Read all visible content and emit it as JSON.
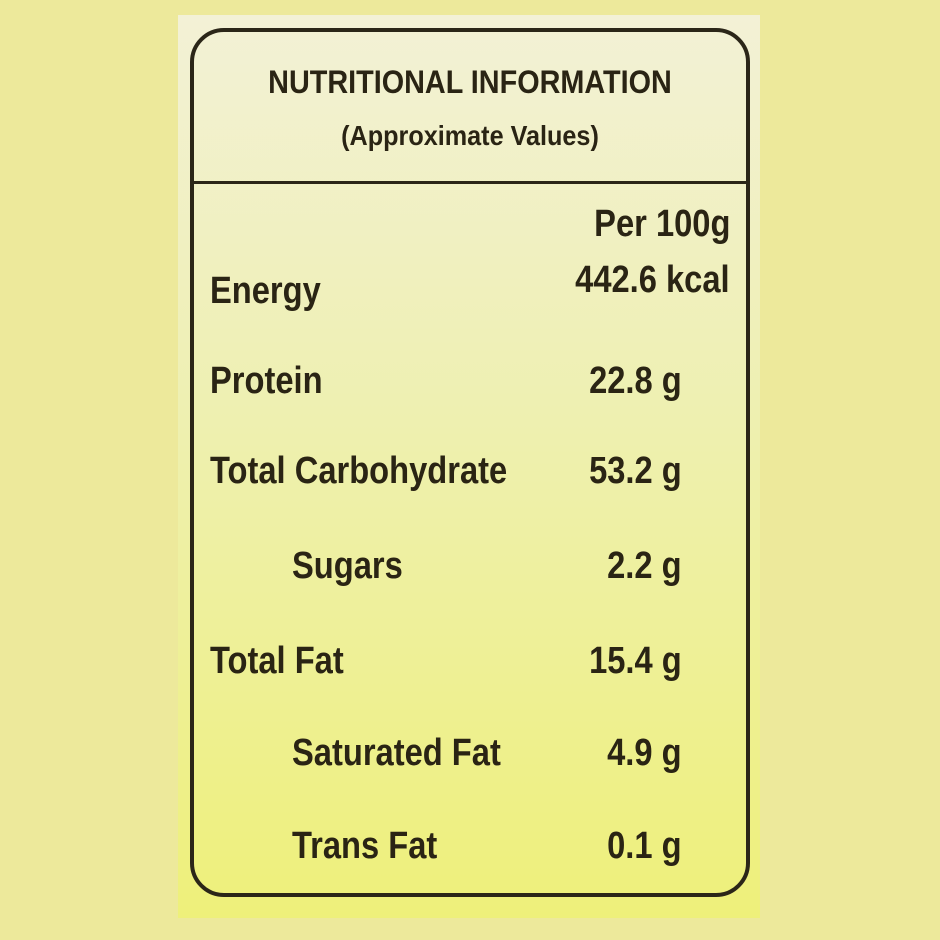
{
  "header": {
    "title": "NUTRITIONAL INFORMATION",
    "subtitle": "(Approximate Values)"
  },
  "table": {
    "column_header": "Per 100g",
    "rows": [
      [
        "Energy",
        "442.6 kcal"
      ],
      [
        "Protein",
        "22.8 g"
      ],
      [
        "Total Carbohydrate",
        "53.2 g"
      ],
      [
        "Sugars",
        "2.2 g"
      ],
      [
        "Total Fat",
        "15.4 g"
      ],
      [
        "Saturated Fat",
        "4.9 g"
      ],
      [
        "Trans Fat",
        "0.1 g"
      ]
    ]
  }
}
